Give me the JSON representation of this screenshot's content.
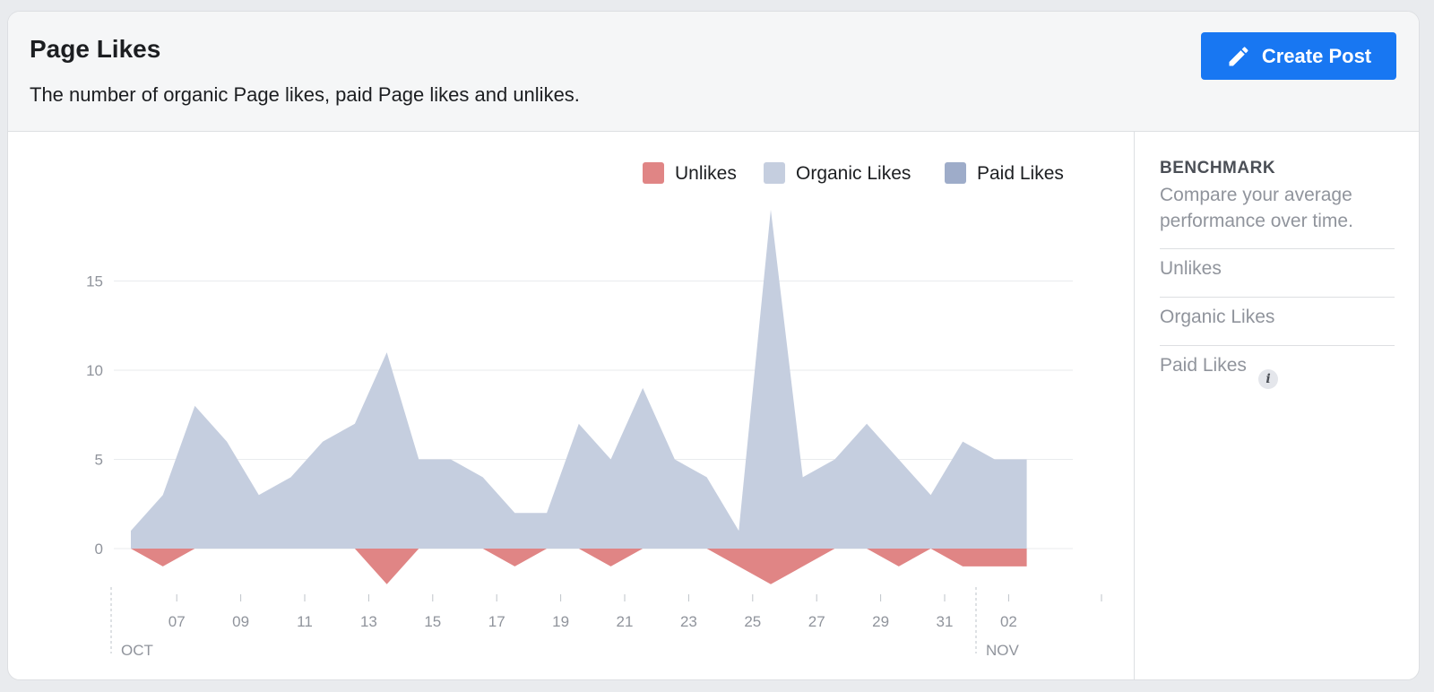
{
  "header": {
    "title": "Page Likes",
    "subtitle": "The number of organic Page likes, paid Page likes and unlikes.",
    "create_post_label": "Create Post",
    "create_post_icon": "pencil-icon"
  },
  "benchmark": {
    "title": "BENCHMARK",
    "description": "Compare your average performance over time.",
    "items": [
      {
        "label": "Unlikes"
      },
      {
        "label": "Organic Likes"
      },
      {
        "label": "Paid Likes",
        "info_icon": "info-icon"
      }
    ]
  },
  "colors": {
    "accent": "#1877f2",
    "unlikes": "#e08585",
    "organic": "#c5cedf",
    "paid": "#9eacc9"
  },
  "chart_data": {
    "type": "area",
    "title": "",
    "xlabel": "",
    "ylabel": "",
    "grid": true,
    "legend_position": "top-right",
    "ylim": [
      -2.3,
      19
    ],
    "y_ticks": [
      0,
      5,
      10,
      15
    ],
    "x": [
      "Oct 06",
      "Oct 07",
      "Oct 08",
      "Oct 09",
      "Oct 10",
      "Oct 11",
      "Oct 12",
      "Oct 13",
      "Oct 14",
      "Oct 15",
      "Oct 16",
      "Oct 17",
      "Oct 18",
      "Oct 19",
      "Oct 20",
      "Oct 21",
      "Oct 22",
      "Oct 23",
      "Oct 24",
      "Oct 25",
      "Oct 26",
      "Oct 27",
      "Oct 28",
      "Oct 29",
      "Oct 30",
      "Oct 31",
      "Nov 01",
      "Nov 02",
      "Nov 03"
    ],
    "x_tick_labels": [
      "07",
      "09",
      "11",
      "13",
      "15",
      "17",
      "19",
      "21",
      "23",
      "25",
      "27",
      "29",
      "31",
      "02"
    ],
    "month_labels": [
      "OCT",
      "NOV"
    ],
    "series": [
      {
        "name": "Unlikes",
        "values": [
          0,
          -1,
          0,
          0,
          0,
          0,
          0,
          0,
          -2,
          0,
          0,
          0,
          -1,
          0,
          0,
          -1,
          0,
          0,
          0,
          -1,
          -2,
          -1,
          0,
          0,
          -1,
          0,
          -1,
          -1,
          -1
        ]
      },
      {
        "name": "Organic Likes",
        "values": [
          1,
          3,
          8,
          6,
          3,
          4,
          6,
          7,
          11,
          5,
          5,
          4,
          2,
          2,
          7,
          5,
          9,
          5,
          4,
          1,
          19,
          4,
          5,
          7,
          5,
          3,
          6,
          5,
          5
        ]
      },
      {
        "name": "Paid Likes",
        "values": [
          0,
          0,
          0,
          0,
          0,
          0,
          0,
          0,
          0,
          0,
          0,
          0,
          0,
          0,
          0,
          0,
          0,
          0,
          0,
          0,
          0,
          0,
          0,
          0,
          0,
          0,
          0,
          0,
          0
        ]
      }
    ]
  }
}
